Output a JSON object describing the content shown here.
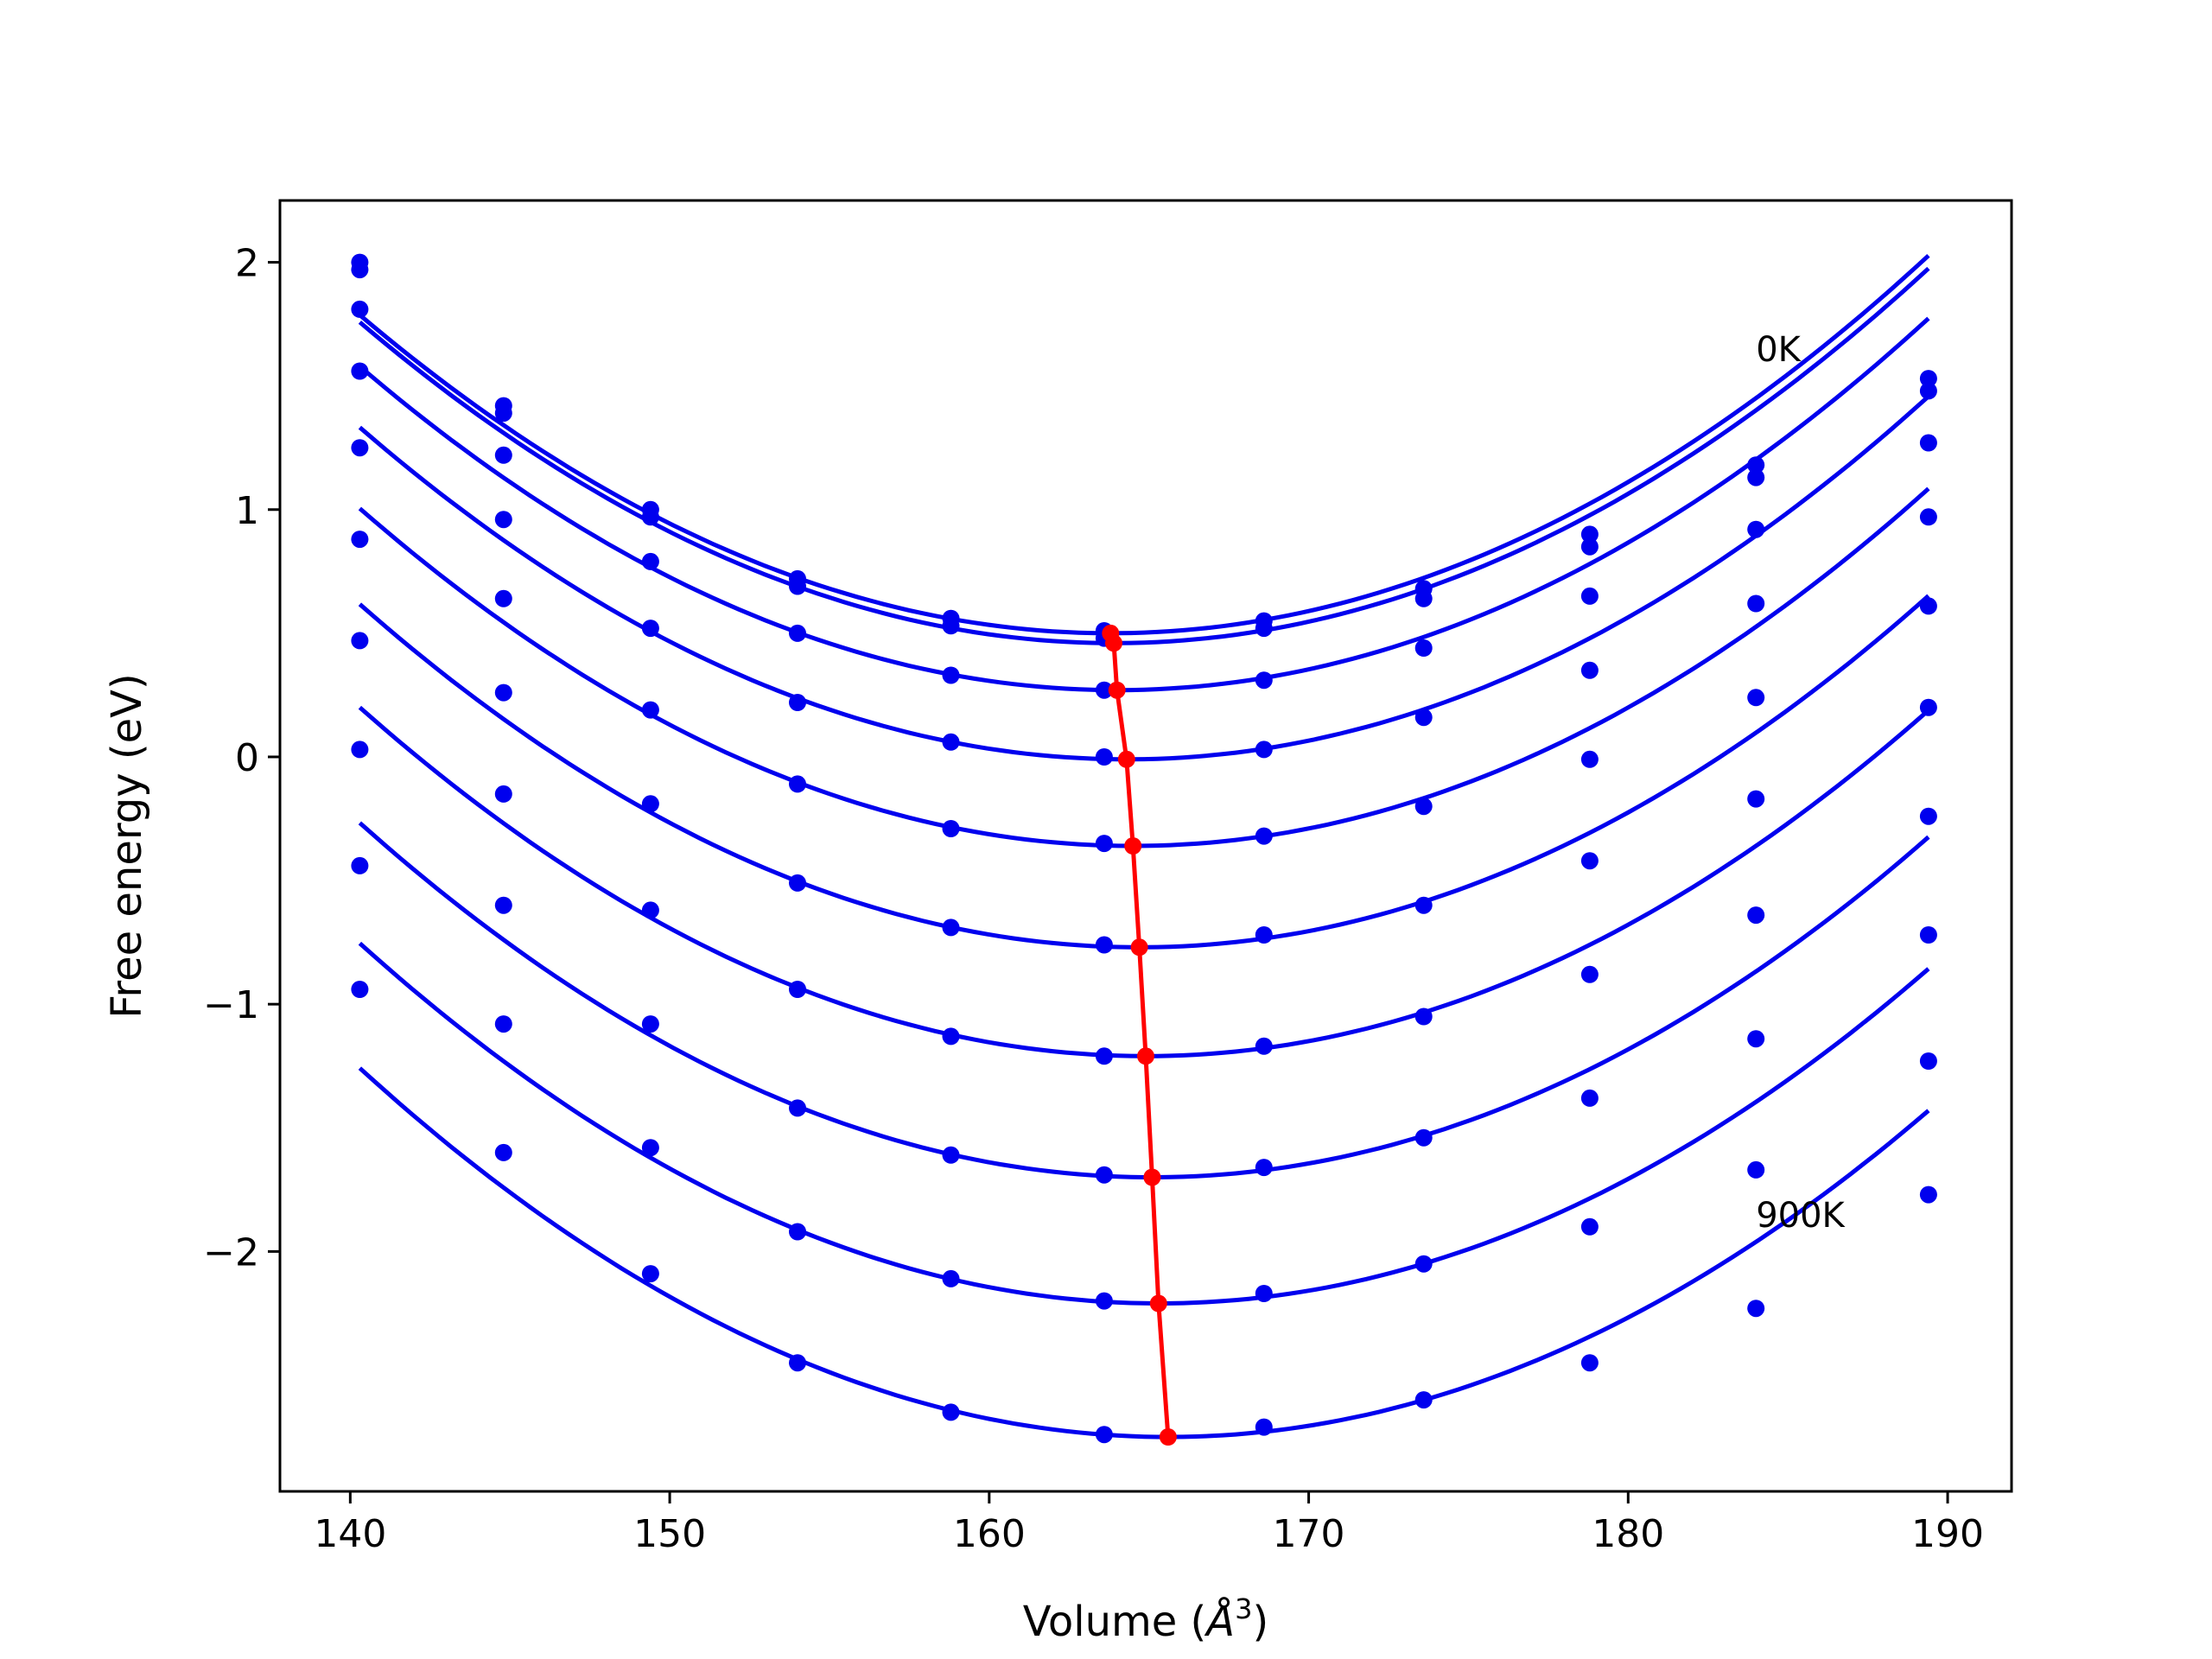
{
  "chart_data": {
    "type": "line",
    "xlabel": "Volume (",
    "xlabel_symbol": "Å",
    "xlabel_sup": "3",
    "xlabel_close": ")",
    "ylabel": "Free energy (eV)",
    "xlim": [
      137.8,
      192.0
    ],
    "ylim": [
      -2.97,
      2.25
    ],
    "xticks": [
      140,
      150,
      160,
      170,
      180,
      190
    ],
    "yticks": [
      -2,
      -1,
      0,
      1,
      2
    ],
    "xtick_labels": [
      "140",
      "150",
      "160",
      "170",
      "180",
      "190"
    ],
    "ytick_labels": [
      "−2",
      "−1",
      "0",
      "1",
      "2"
    ],
    "annotations": [
      {
        "text": "0K",
        "x": 184.0,
        "y": 1.6
      },
      {
        "text": "900K",
        "x": 184.0,
        "y": -1.9
      }
    ],
    "grid": false,
    "legend": "none",
    "colors": {
      "series": "#0000ee",
      "minima": "#ff0000"
    },
    "volumes": [
      140.3,
      144.8,
      149.4,
      154.0,
      158.8,
      163.6,
      168.6,
      173.6,
      178.8,
      184.0,
      189.4
    ],
    "series": [
      {
        "values": [
          2.0,
          1.42,
          1.0,
          0.72,
          0.56,
          0.51,
          0.55,
          0.68,
          0.9,
          1.18,
          1.53
        ],
        "fit": {
          "vmin": 163.8,
          "emin": 0.5,
          "a": 0.00233
        }
      },
      {
        "values": [
          1.97,
          1.39,
          0.97,
          0.69,
          0.53,
          0.48,
          0.52,
          0.64,
          0.85,
          1.13,
          1.48
        ],
        "fit": {
          "vmin": 163.9,
          "emin": 0.46,
          "a": 0.00233
        }
      },
      {
        "values": [
          1.81,
          1.22,
          0.79,
          0.5,
          0.33,
          0.27,
          0.31,
          0.44,
          0.65,
          0.92,
          1.27
        ],
        "fit": {
          "vmin": 164.0,
          "emin": 0.27,
          "a": 0.00233
        }
      },
      {
        "values": [
          1.56,
          0.96,
          0.52,
          0.22,
          0.06,
          0.0,
          0.03,
          0.16,
          0.35,
          0.62,
          0.97
        ],
        "fit": {
          "vmin": 164.3,
          "emin": -0.01,
          "a": 0.00233
        }
      },
      {
        "values": [
          1.25,
          0.64,
          0.19,
          -0.11,
          -0.29,
          -0.35,
          -0.32,
          -0.2,
          -0.01,
          0.24,
          0.61
        ],
        "fit": {
          "vmin": 164.5,
          "emin": -0.36,
          "a": 0.00233
        }
      },
      {
        "values": [
          0.88,
          0.26,
          -0.19,
          -0.51,
          -0.69,
          -0.76,
          -0.72,
          -0.6,
          -0.42,
          -0.17,
          0.2
        ],
        "fit": {
          "vmin": 164.7,
          "emin": -0.77,
          "a": 0.00233
        }
      },
      {
        "values": [
          0.47,
          -0.15,
          -0.62,
          -0.94,
          -1.13,
          -1.21,
          -1.17,
          -1.05,
          -0.88,
          -0.64,
          -0.24
        ],
        "fit": {
          "vmin": 164.9,
          "emin": -1.21,
          "a": 0.00233
        }
      },
      {
        "values": [
          0.03,
          -0.6,
          -1.08,
          -1.42,
          -1.61,
          -1.69,
          -1.66,
          -1.54,
          -1.38,
          -1.14,
          -0.72
        ],
        "fit": {
          "vmin": 165.1,
          "emin": -1.7,
          "a": 0.00233
        }
      },
      {
        "values": [
          -0.44,
          -1.08,
          -1.58,
          -1.92,
          -2.11,
          -2.2,
          -2.17,
          -2.05,
          -1.9,
          -1.67,
          -1.23
        ],
        "fit": {
          "vmin": 165.3,
          "emin": -2.21,
          "a": 0.00233
        }
      },
      {
        "values": [
          -0.94,
          -1.6,
          -2.09,
          -2.45,
          -2.65,
          -2.74,
          -2.71,
          -2.6,
          -2.45,
          -2.23,
          -1.77
        ],
        "fit": {
          "vmin": 165.6,
          "emin": -2.75,
          "a": 0.00233
        }
      }
    ],
    "minima": {
      "x": [
        163.8,
        163.9,
        164.0,
        164.3,
        164.5,
        164.7,
        164.9,
        165.1,
        165.3,
        165.6
      ],
      "y": [
        0.5,
        0.46,
        0.27,
        -0.01,
        -0.36,
        -0.77,
        -1.21,
        -1.7,
        -2.21,
        -2.75
      ]
    }
  }
}
